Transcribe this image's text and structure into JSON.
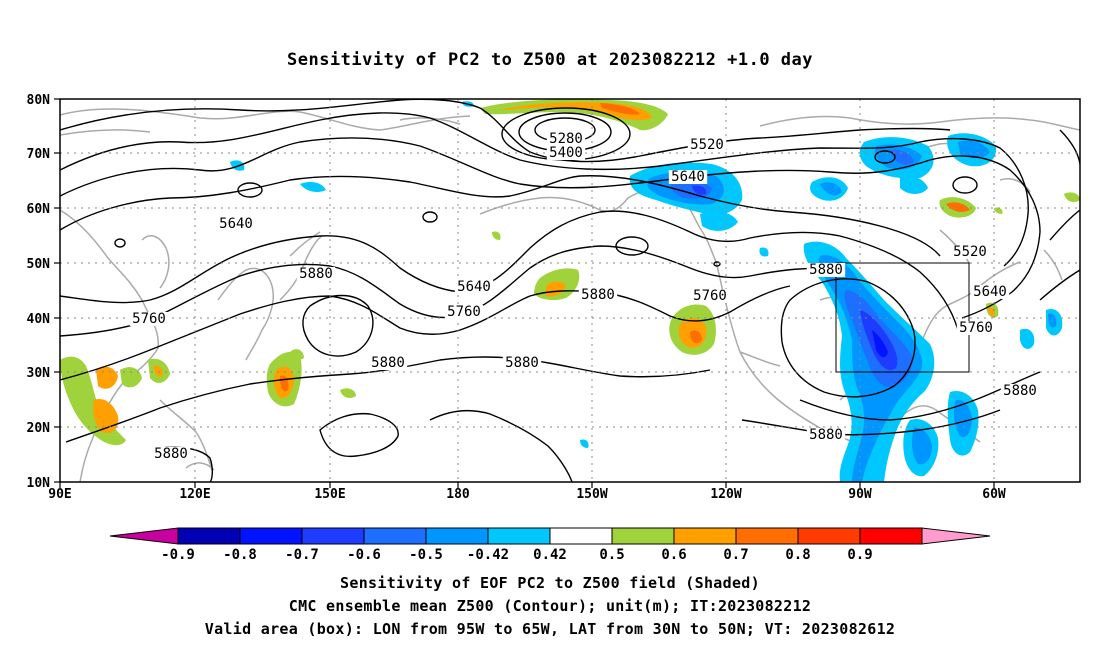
{
  "title": "Sensitivity of PC2 to Z500 at 2023082212 +1.0 day",
  "lat_labels": [
    "80N",
    "70N",
    "60N",
    "50N",
    "40N",
    "30N",
    "20N",
    "10N"
  ],
  "lon_labels": [
    "90E",
    "120E",
    "150E",
    "180",
    "150W",
    "120W",
    "90W",
    "60W"
  ],
  "contour_labels": [
    {
      "id": "5280",
      "text": "5280"
    },
    {
      "id": "5400",
      "text": "5400"
    },
    {
      "id": "5520a",
      "text": "5520"
    },
    {
      "id": "5640a",
      "text": "5640"
    },
    {
      "id": "5640b",
      "text": "5640"
    },
    {
      "id": "5640c",
      "text": "5640"
    },
    {
      "id": "5760a",
      "text": "5760"
    },
    {
      "id": "5760b",
      "text": "5760"
    },
    {
      "id": "5880a",
      "text": "5880"
    },
    {
      "id": "5880b",
      "text": "5880"
    },
    {
      "id": "5880c",
      "text": "5880"
    },
    {
      "id": "5880d",
      "text": "5880"
    },
    {
      "id": "5880e",
      "text": "5880"
    },
    {
      "id": "5760c",
      "text": "5760"
    },
    {
      "id": "5880f",
      "text": "5880"
    },
    {
      "id": "5520b",
      "text": "5520"
    },
    {
      "id": "5640d",
      "text": "5640"
    },
    {
      "id": "5760d",
      "text": "5760"
    },
    {
      "id": "5880g",
      "text": "5880"
    },
    {
      "id": "5880h",
      "text": "5880"
    }
  ],
  "colorbar": {
    "labels": [
      "-0.9",
      "-0.8",
      "-0.7",
      "-0.6",
      "-0.5",
      "-0.42",
      "0.42",
      "0.5",
      "0.6",
      "0.7",
      "0.8",
      "0.9"
    ],
    "colors": [
      "#c8009e",
      "#0000b4",
      "#0014ff",
      "#1e3cff",
      "#1e6eff",
      "#0096ff",
      "#00c8ff",
      "#ffffff",
      "#a0d23c",
      "#ffa000",
      "#ff6e00",
      "#ff3c00",
      "#ff0000",
      "#ff9bcd"
    ]
  },
  "captions": {
    "line1": "Sensitivity of EOF PC2 to Z500 field (Shaded)",
    "line2": "CMC ensemble mean Z500 (Contour); unit(m); IT:2023082212",
    "line3": "Valid area (box): LON from 95W to 65W, LAT from 30N to 50N; VT: 2023082612"
  }
}
